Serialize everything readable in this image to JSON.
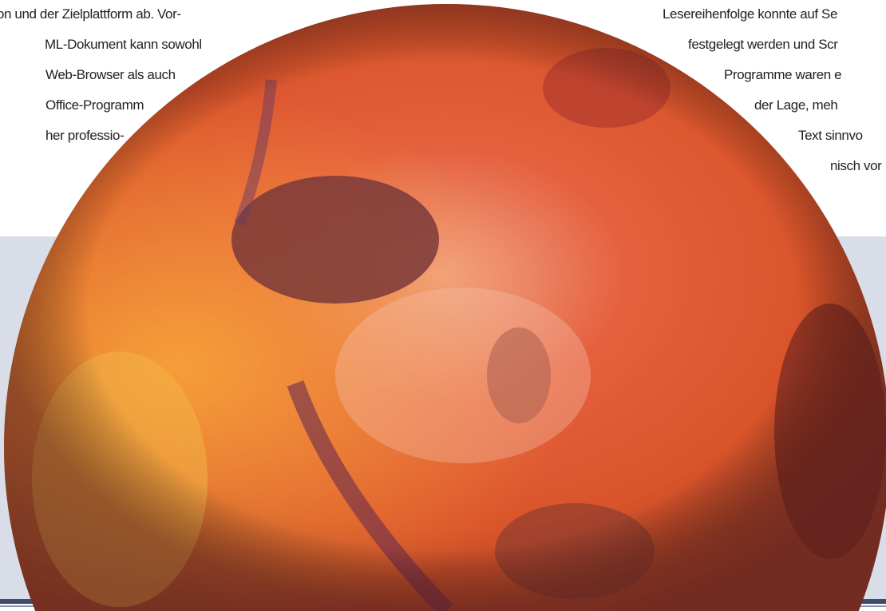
{
  "left_column": {
    "lines": [
      "on und der Zielplattform ab. Vor-",
      "ML-Dokument kann sowohl",
      "Web-Browser als auch",
      "Office-Programm",
      "her professio-"
    ]
  },
  "right_column": {
    "lines": [
      "Lesereihenfolge konnte auf Se",
      "festgelegt werden und Scr",
      "Programme waren e",
      "der Lage, meh",
      "Text sinnvo",
      "nisch vor"
    ]
  }
}
